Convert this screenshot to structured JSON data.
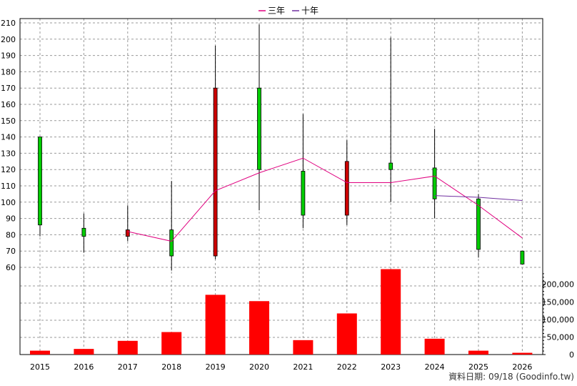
{
  "chart_data": {
    "type": "candlestick+line+bar",
    "legend": {
      "placement": "top-center",
      "items": [
        {
          "name": "三年",
          "color": "#e0007f"
        },
        {
          "name": "十年",
          "color": "#7030a0"
        }
      ]
    },
    "x": [
      "2015",
      "2016",
      "2017",
      "2018",
      "2019",
      "2020",
      "2021",
      "2022",
      "2023",
      "2024",
      "2025",
      "2026"
    ],
    "price_axis": {
      "ylim": [
        60,
        210
      ],
      "ticks": [
        60,
        70,
        80,
        90,
        100,
        110,
        120,
        130,
        140,
        150,
        160,
        170,
        180,
        190,
        200,
        210
      ],
      "grid": true
    },
    "candles": [
      {
        "year": "2015",
        "open": 86,
        "close": 140,
        "high": 140,
        "low": 79
      },
      {
        "year": "2016",
        "open": 79,
        "close": 84,
        "high": 93,
        "low": 69
      },
      {
        "year": "2017",
        "open": 83,
        "close": 79,
        "high": 98,
        "low": 76
      },
      {
        "year": "2018",
        "open": 67,
        "close": 83,
        "high": 113,
        "low": 58
      },
      {
        "year": "2019",
        "open": 170,
        "close": 67,
        "high": 196,
        "low": 65
      },
      {
        "year": "2020",
        "open": 120,
        "close": 170,
        "high": 209,
        "low": 95
      },
      {
        "year": "2021",
        "open": 92,
        "close": 119,
        "high": 154,
        "low": 84
      },
      {
        "year": "2022",
        "open": 125,
        "close": 92,
        "high": 138,
        "low": 86
      },
      {
        "year": "2023",
        "open": 120,
        "close": 124,
        "high": 201,
        "low": 100
      },
      {
        "year": "2024",
        "open": 102,
        "close": 121,
        "high": 145,
        "low": 90
      },
      {
        "year": "2025",
        "open": 71,
        "close": 102,
        "high": 105,
        "low": 66
      },
      {
        "year": "2026",
        "open": 62,
        "close": 70,
        "high": 70,
        "low": 62
      }
    ],
    "series": [
      {
        "name": "三年",
        "color": "#e0007f",
        "values": [
          null,
          null,
          82,
          76,
          107,
          118,
          127,
          112,
          112,
          116,
          98,
          78
        ]
      },
      {
        "name": "十年",
        "color": "#7030a0",
        "values": [
          null,
          null,
          null,
          null,
          null,
          null,
          null,
          null,
          null,
          104,
          103,
          101
        ]
      }
    ],
    "volume_axis": {
      "ylim": [
        0,
        240000
      ],
      "ticks": [
        0,
        50000,
        100000,
        150000,
        200000
      ],
      "tick_labels": [
        "0",
        "50,000",
        "100,000",
        "150,000",
        "200,000"
      ]
    },
    "volume": [
      11000,
      16000,
      39000,
      64000,
      170000,
      152000,
      41000,
      117000,
      243000,
      45000,
      11000,
      5000
    ]
  },
  "colors": {
    "up": "#00cc00",
    "down": "#cc0000",
    "volume": "#ff0000",
    "grid": "#999999"
  },
  "credit": "資料日期: 09/18  (Goodinfo.tw)"
}
